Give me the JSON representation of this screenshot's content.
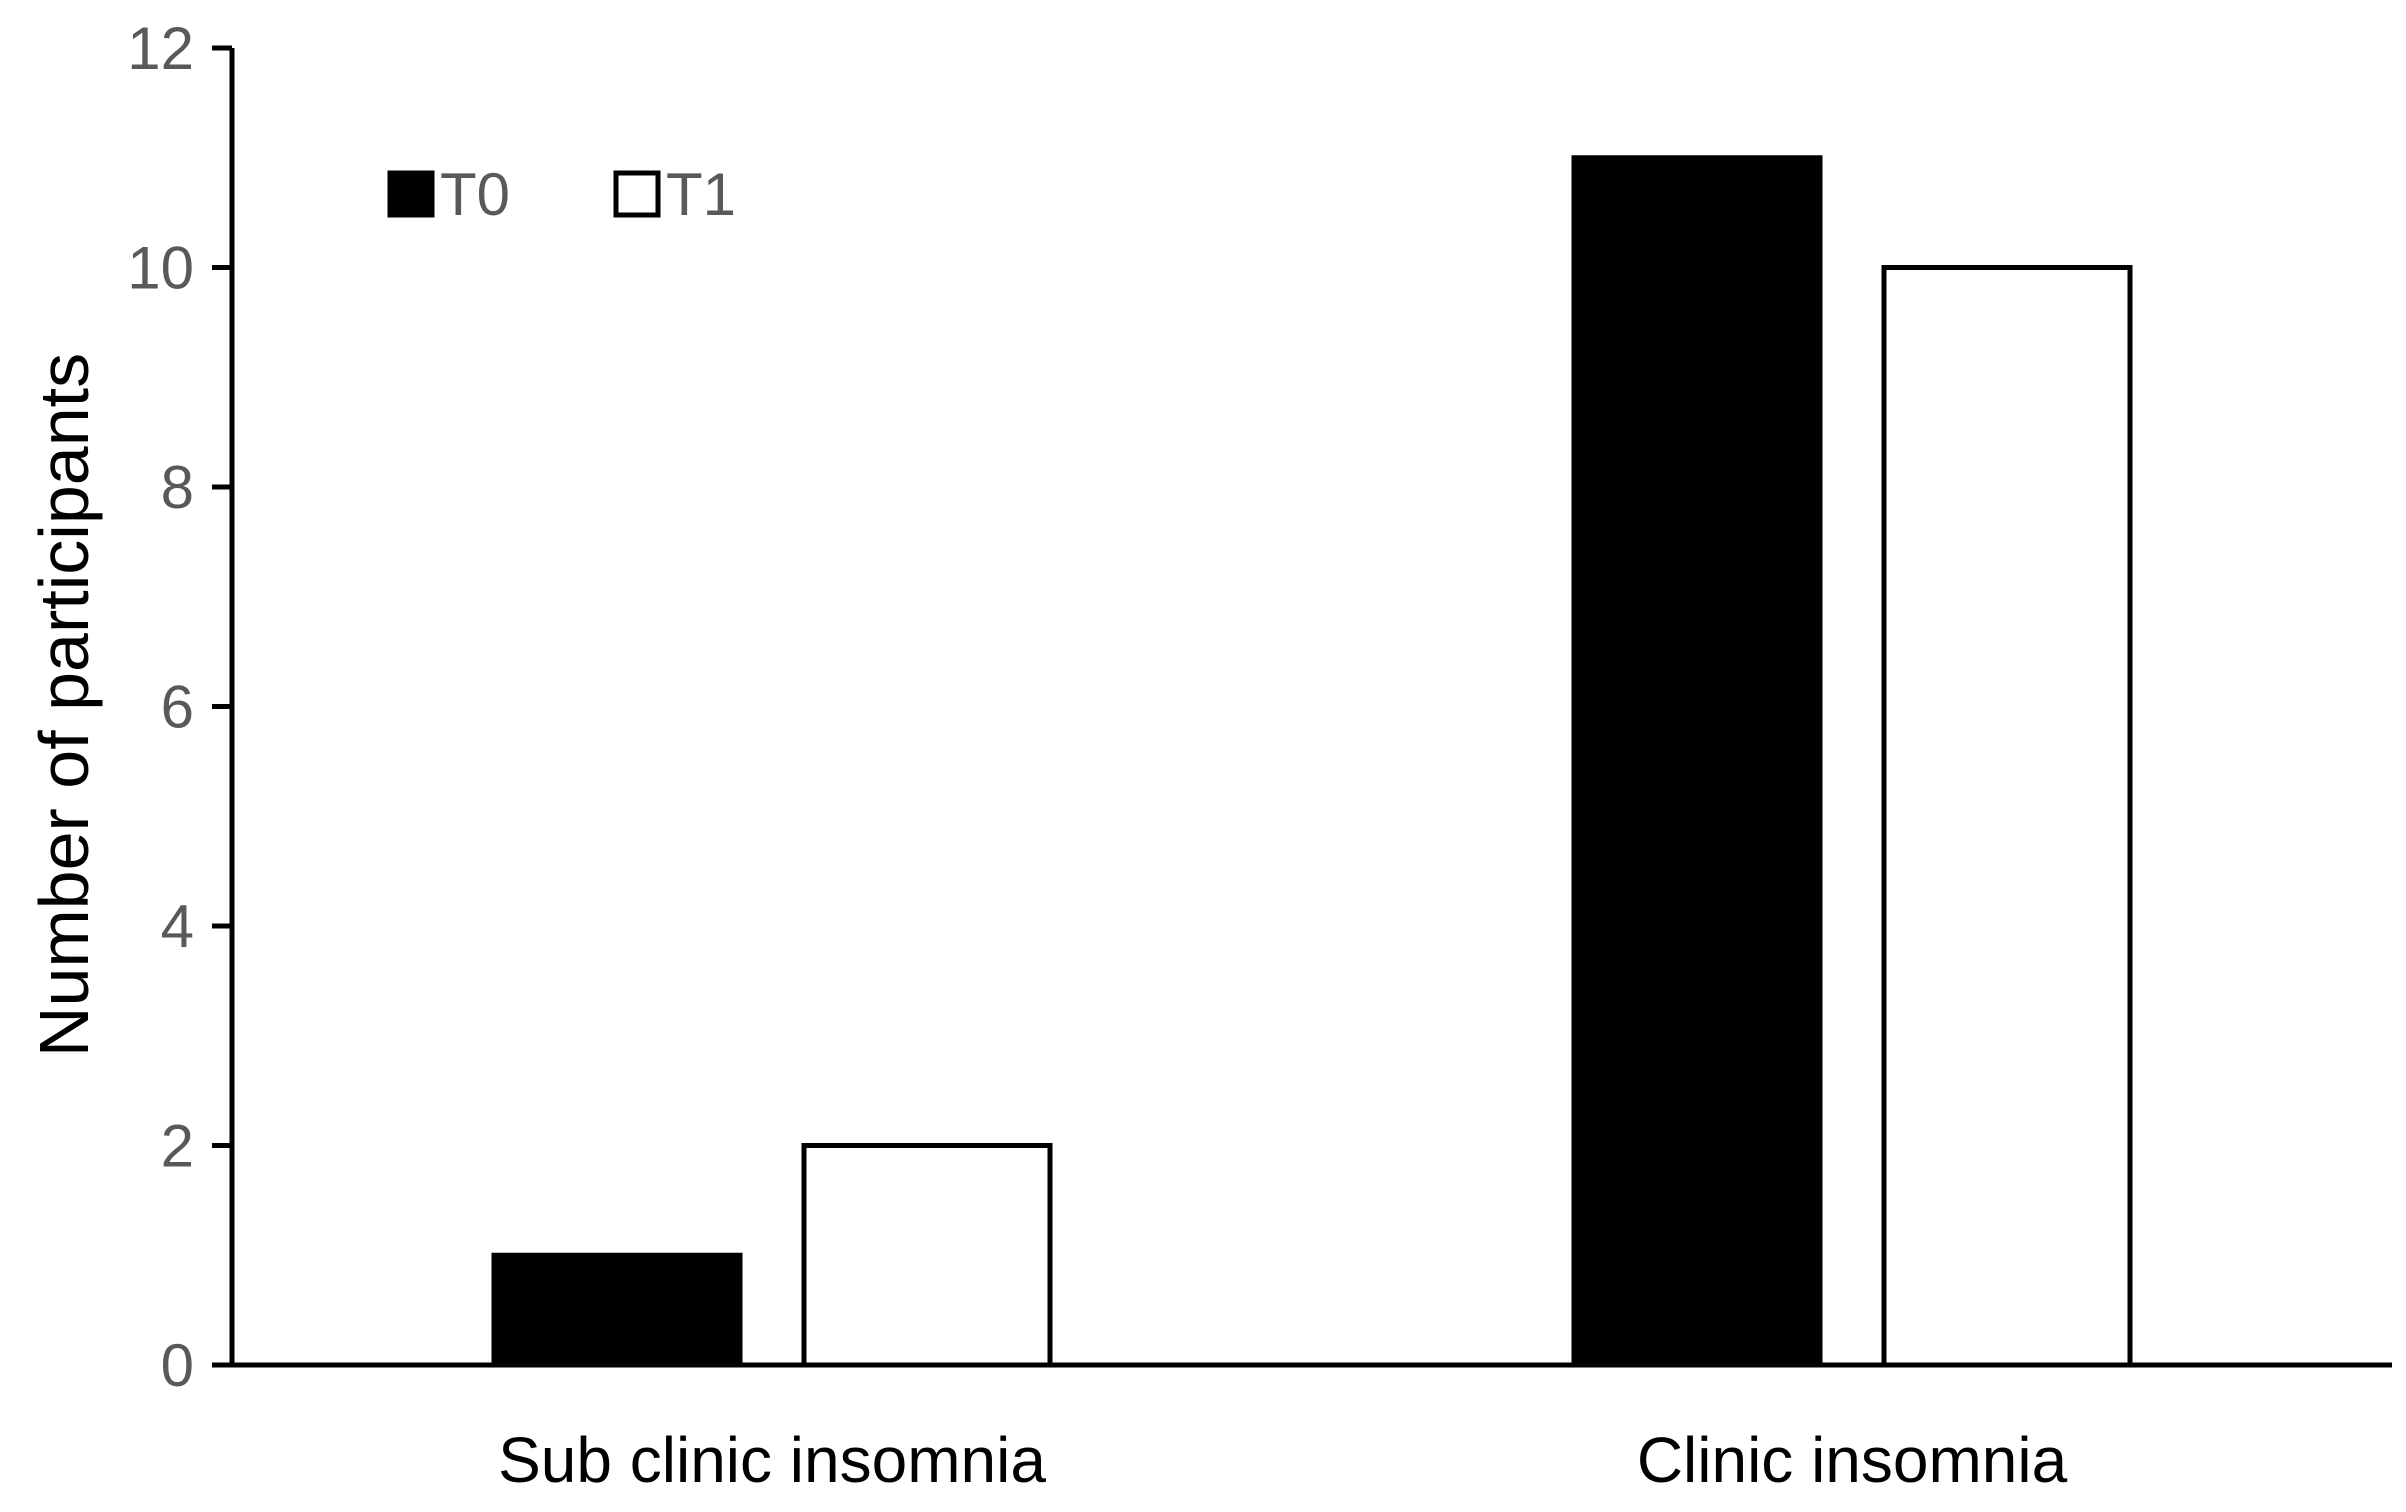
{
  "chart_data": {
    "type": "bar",
    "title": "",
    "xlabel": "",
    "ylabel": "Number of participants",
    "categories": [
      "Sub clinic insomnia",
      "Clinic insomnia"
    ],
    "series": [
      {
        "name": "T0",
        "values": [
          1,
          11
        ],
        "fill": "#000000",
        "stroke": "#000000"
      },
      {
        "name": "T1",
        "values": [
          2,
          10
        ],
        "fill": "#ffffff",
        "stroke": "#000000"
      }
    ],
    "ylim": [
      0,
      12
    ],
    "yticks": [
      0,
      2,
      4,
      6,
      8,
      10,
      12
    ],
    "grid": false,
    "legend": "top-left"
  }
}
